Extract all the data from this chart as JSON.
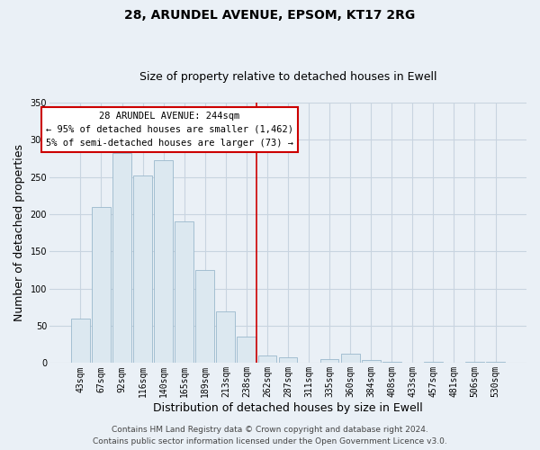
{
  "title": "28, ARUNDEL AVENUE, EPSOM, KT17 2RG",
  "subtitle": "Size of property relative to detached houses in Ewell",
  "xlabel": "Distribution of detached houses by size in Ewell",
  "ylabel": "Number of detached properties",
  "bar_labels": [
    "43sqm",
    "67sqm",
    "92sqm",
    "116sqm",
    "140sqm",
    "165sqm",
    "189sqm",
    "213sqm",
    "238sqm",
    "262sqm",
    "287sqm",
    "311sqm",
    "335sqm",
    "360sqm",
    "384sqm",
    "408sqm",
    "433sqm",
    "457sqm",
    "481sqm",
    "506sqm",
    "530sqm"
  ],
  "bar_values": [
    60,
    210,
    282,
    252,
    272,
    190,
    125,
    70,
    35,
    10,
    8,
    0,
    5,
    13,
    4,
    2,
    0,
    2,
    0,
    2,
    2
  ],
  "bar_color": "#dce8f0",
  "bar_edge_color": "#9ab8cc",
  "vline_x": 8.5,
  "vline_color": "#cc0000",
  "ylim": [
    0,
    350
  ],
  "yticks": [
    0,
    50,
    100,
    150,
    200,
    250,
    300,
    350
  ],
  "annotation_title": "28 ARUNDEL AVENUE: 244sqm",
  "annotation_line1": "← 95% of detached houses are smaller (1,462)",
  "annotation_line2": "5% of semi-detached houses are larger (73) →",
  "annotation_box_color": "#ffffff",
  "annotation_border_color": "#cc0000",
  "footer1": "Contains HM Land Registry data © Crown copyright and database right 2024.",
  "footer2": "Contains public sector information licensed under the Open Government Licence v3.0.",
  "background_color": "#eaf0f6",
  "grid_color": "#c8d4e0",
  "title_fontsize": 10,
  "subtitle_fontsize": 9,
  "axis_label_fontsize": 9,
  "tick_fontsize": 7,
  "footer_fontsize": 6.5
}
